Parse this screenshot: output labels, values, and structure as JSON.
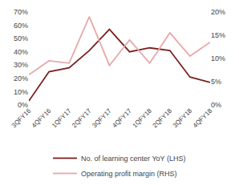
{
  "chart_data": {
    "type": "line",
    "categories": [
      "3QFY16",
      "4QFY16",
      "1QFY17",
      "2QFY17",
      "3QFY17",
      "4QFY17",
      "1QFY18",
      "2QFY18",
      "3QFY18",
      "4QFY18"
    ],
    "series": [
      {
        "name": "No. of learning center YoY (LHS)",
        "color": "#7B2020",
        "axis": "y",
        "values": [
          0.03,
          0.25,
          0.28,
          0.41,
          0.57,
          0.4,
          0.43,
          0.41,
          0.21,
          0.17
        ]
      },
      {
        "name": "Operating profit margin (RHS)",
        "color": "#E8A8A8",
        "axis": "y2",
        "values": [
          0.065,
          0.095,
          0.09,
          0.19,
          0.085,
          0.14,
          0.09,
          0.155,
          0.105,
          0.135
        ]
      }
    ],
    "ylim": [
      0,
      0.7
    ],
    "yticks": [
      {
        "value": 0,
        "label": "0%"
      },
      {
        "value": 0.1,
        "label": "10%"
      },
      {
        "value": 0.2,
        "label": "20%"
      },
      {
        "value": 0.3,
        "label": "30%"
      },
      {
        "value": 0.4,
        "label": "40%"
      },
      {
        "value": 0.5,
        "label": "50%"
      },
      {
        "value": 0.6,
        "label": "60%"
      },
      {
        "value": 0.7,
        "label": "70%"
      }
    ],
    "y2lim": [
      0,
      0.2
    ],
    "y2ticks": [
      {
        "value": 0,
        "label": "0%"
      },
      {
        "value": 0.05,
        "label": "5%"
      },
      {
        "value": 0.1,
        "label": "10%"
      },
      {
        "value": 0.15,
        "label": "15%"
      },
      {
        "value": 0.2,
        "label": "20%"
      }
    ],
    "grid": false,
    "legend": "bottom"
  }
}
